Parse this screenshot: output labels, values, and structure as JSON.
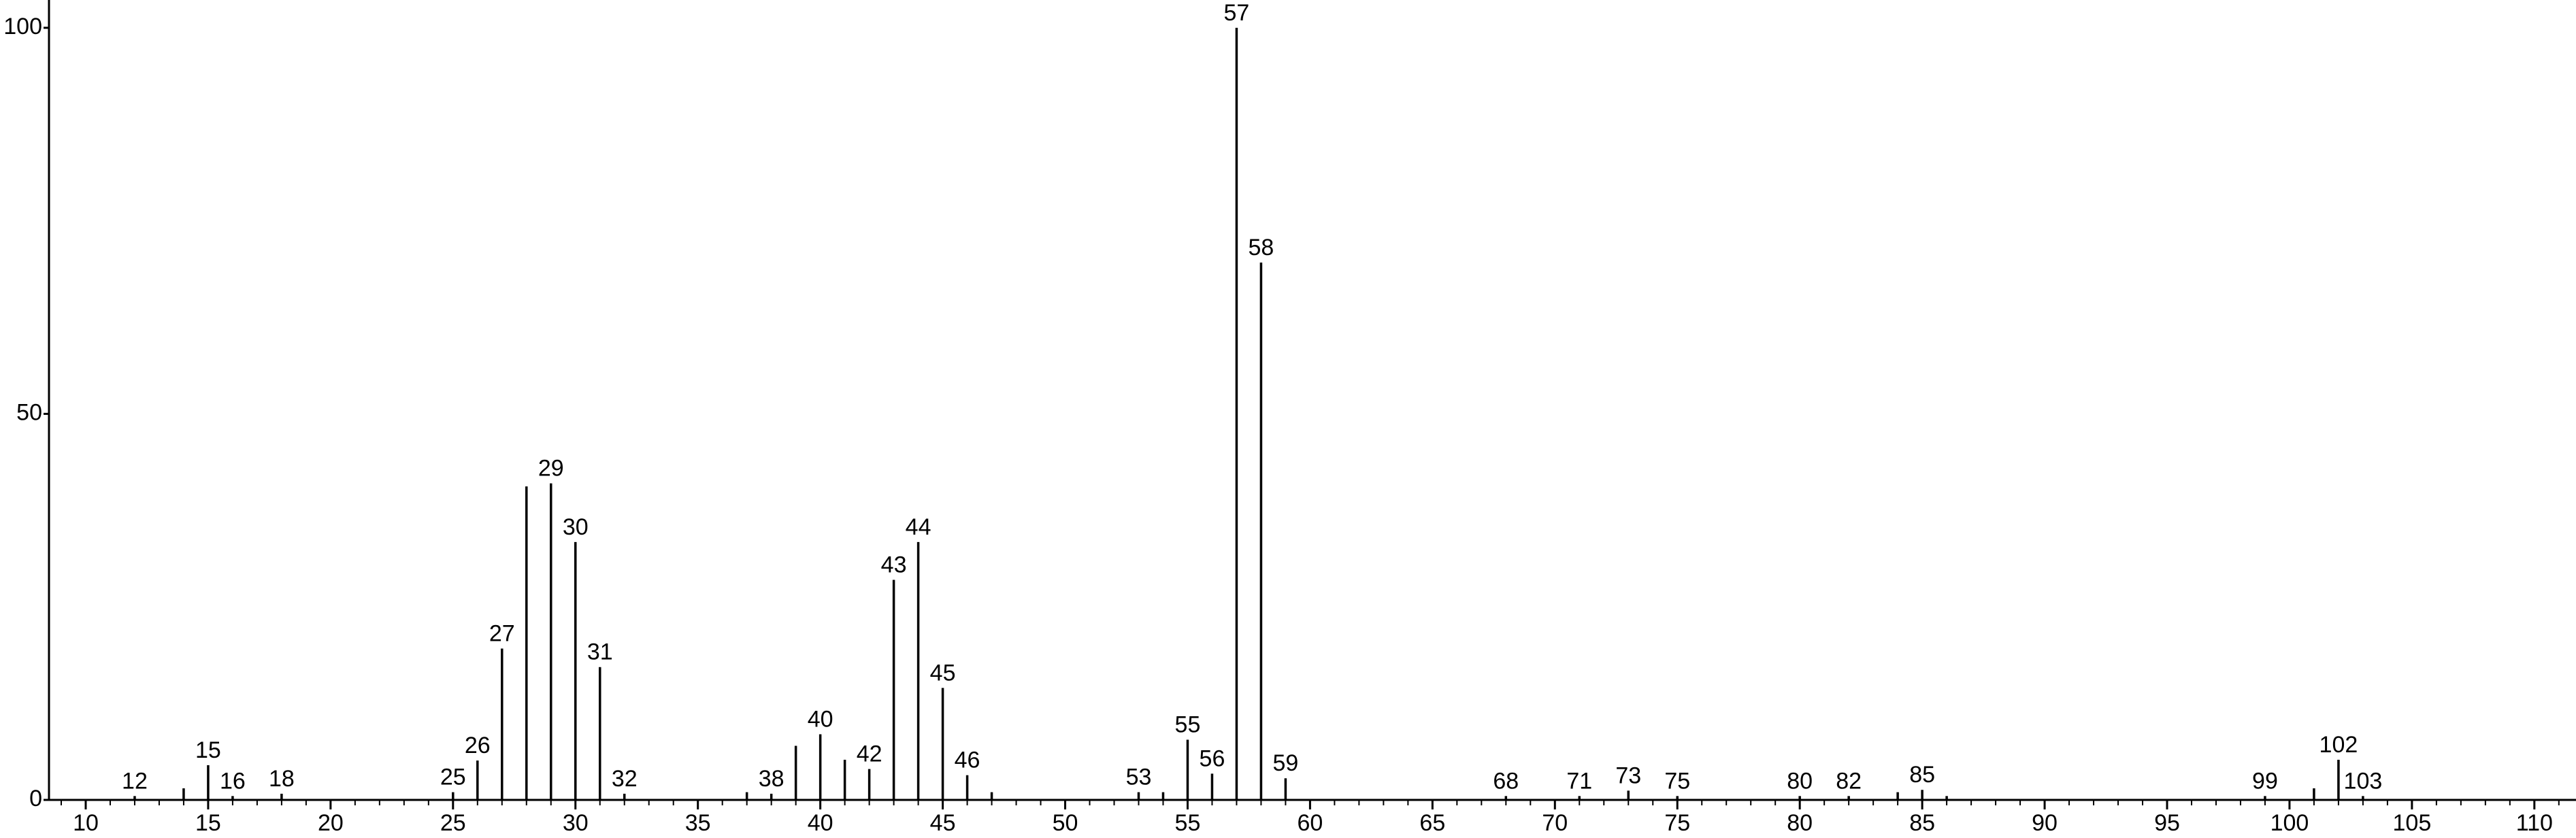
{
  "chart_data": {
    "type": "stem",
    "x": [
      12,
      14,
      15,
      16,
      18,
      25,
      26,
      27,
      28,
      29,
      30,
      31,
      32,
      37,
      38,
      39,
      40,
      41,
      42,
      43,
      44,
      45,
      46,
      47,
      53,
      54,
      55,
      56,
      57,
      58,
      59,
      68,
      71,
      73,
      75,
      80,
      82,
      84,
      85,
      86,
      99,
      101,
      102,
      103
    ],
    "values": [
      0.5,
      1.5,
      4.5,
      0.5,
      0.8,
      1,
      5.1,
      19.6,
      40.6,
      41,
      33.4,
      17.2,
      0.8,
      1,
      0.8,
      7,
      8.5,
      5.2,
      4,
      28.5,
      33.4,
      14.5,
      3.2,
      1,
      1,
      1,
      7.8,
      3.4,
      100,
      69.6,
      2.8,
      0.5,
      0.5,
      1.2,
      0.5,
      0.5,
      0.5,
      1,
      1.3,
      0.5,
      0.5,
      1.5,
      5.2,
      0.5
    ],
    "annotations": [
      12,
      15,
      16,
      18,
      25,
      26,
      27,
      29,
      30,
      31,
      32,
      38,
      40,
      42,
      43,
      44,
      45,
      46,
      53,
      55,
      56,
      57,
      58,
      59,
      68,
      71,
      73,
      75,
      80,
      82,
      85,
      99,
      102,
      103
    ],
    "color": "#000000",
    "xlim": [
      8.5,
      111.7
    ],
    "xticks": [
      10,
      15,
      20,
      25,
      30,
      35,
      40,
      45,
      50,
      55,
      60,
      65,
      70,
      75,
      80,
      85,
      90,
      95,
      100,
      105,
      110
    ],
    "ylim": [
      0,
      103.6
    ],
    "yticks": [
      0,
      50,
      100
    ]
  }
}
